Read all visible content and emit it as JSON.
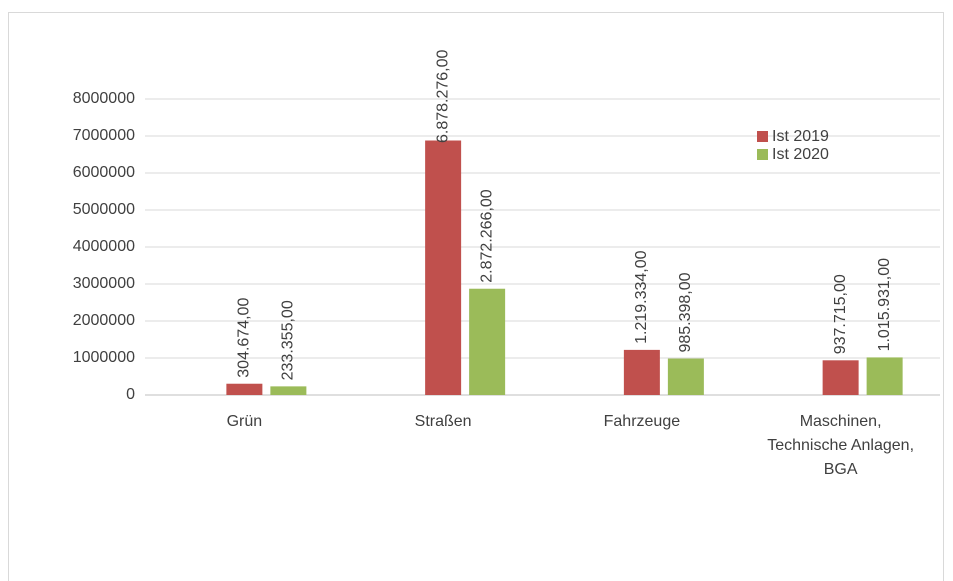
{
  "chart_data": {
    "type": "bar",
    "categories": [
      "Grün",
      "Straßen",
      "Fahrzeuge",
      "Maschinen, Technische Anlagen, BGA"
    ],
    "series": [
      {
        "name": "Ist 2019",
        "color": "#c0504d",
        "values": [
          304674,
          6878276,
          1219334,
          937715
        ],
        "value_labels": [
          "304.674,00",
          "6.878.276,00",
          "1.219.334,00",
          "937.715,00"
        ]
      },
      {
        "name": "Ist 2020",
        "color": "#9bbb59",
        "values": [
          233355,
          2872266,
          985398,
          1015931
        ],
        "value_labels": [
          "233.355,00",
          "2.872.266,00",
          "985.398,00",
          "1.015.931,00"
        ]
      }
    ],
    "ylim": [
      0,
      8000000
    ],
    "yticks": [
      0,
      1000000,
      2000000,
      3000000,
      4000000,
      5000000,
      6000000,
      7000000,
      8000000
    ],
    "grid": true,
    "legend": "right"
  }
}
